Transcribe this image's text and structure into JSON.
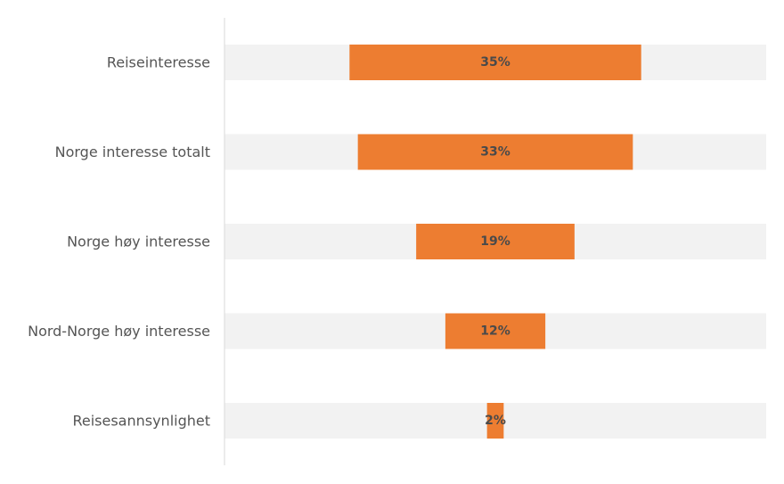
{
  "chart_data": {
    "type": "bar",
    "orientation": "horizontal",
    "style": "centered-funnel",
    "categories": [
      "Reiseinteresse",
      "Norge interesse totalt",
      "Norge høy interesse",
      "Nord-Norge høy interesse",
      "Reisesannsynlighet"
    ],
    "values": [
      35,
      33,
      19,
      12,
      2
    ],
    "value_labels": [
      "35%",
      "33%",
      "19%",
      "12%",
      "2%"
    ],
    "xlim": [
      0,
      65
    ],
    "title": "",
    "xlabel": "",
    "ylabel": "",
    "grid": false,
    "legend": "none",
    "colors": {
      "bar": "#ED7D31",
      "track": "#F2F2F2",
      "axis": "#D9D9D9"
    }
  }
}
